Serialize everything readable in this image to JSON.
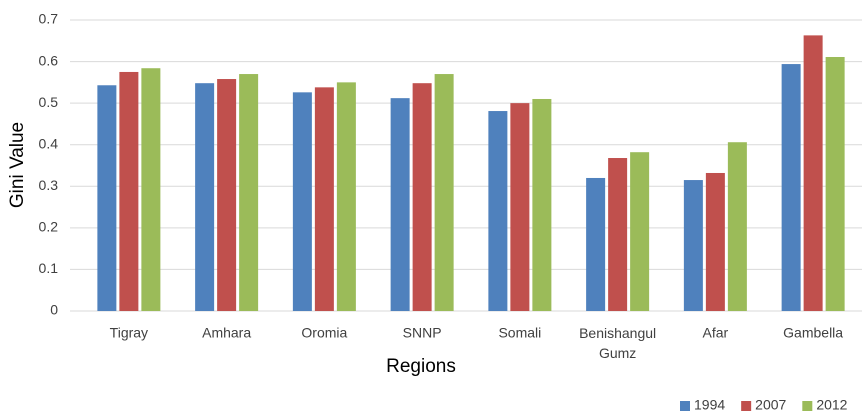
{
  "chart_data": {
    "type": "bar",
    "x_label": "Regions",
    "y_label": "Gini  Value",
    "categories": [
      "Tigray",
      "Amhara",
      "Oromia",
      "SNNP",
      "Somali",
      "Benishangul Gumz",
      "Afar",
      "Gambella"
    ],
    "series": [
      {
        "name": "1994",
        "color": "#4f81bd",
        "values": [
          0.543,
          0.548,
          0.526,
          0.512,
          0.481,
          0.32,
          0.315,
          0.594
        ]
      },
      {
        "name": "2007",
        "color": "#c0504d",
        "values": [
          0.575,
          0.558,
          0.538,
          0.548,
          0.5,
          0.368,
          0.332,
          0.663
        ]
      },
      {
        "name": "2012",
        "color": "#9bbb59",
        "values": [
          0.584,
          0.57,
          0.55,
          0.57,
          0.51,
          0.382,
          0.406,
          0.611
        ]
      }
    ],
    "ylim": [
      0,
      0.7
    ],
    "yticks": [
      0,
      0.1,
      0.2,
      0.3,
      0.4,
      0.5,
      0.6,
      0.7
    ],
    "grid": true,
    "legend": "bottom-right"
  }
}
